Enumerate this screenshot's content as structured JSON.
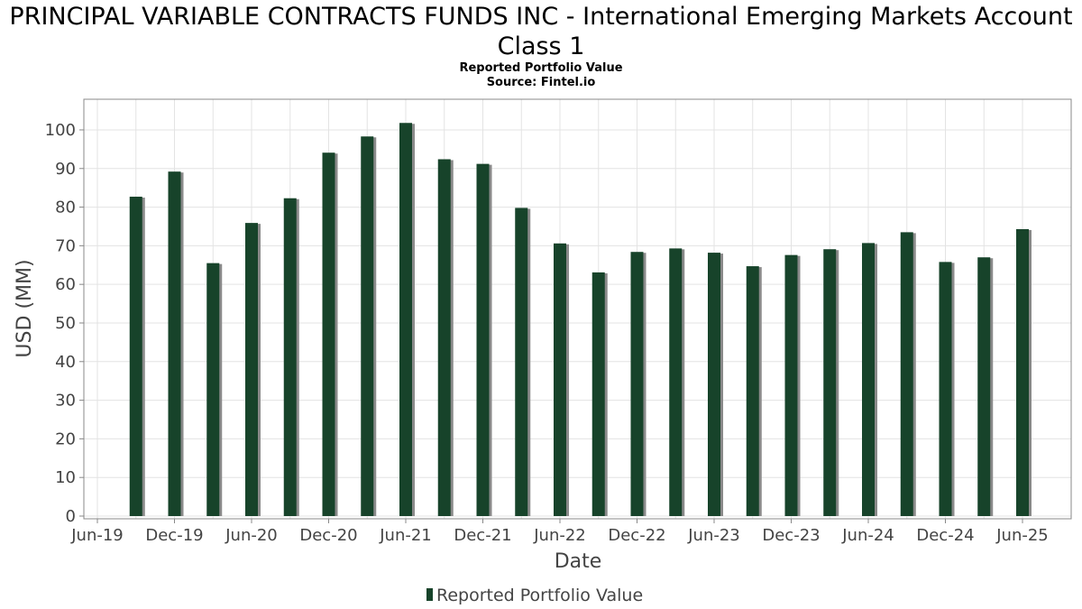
{
  "chart_data": {
    "type": "bar",
    "title": "PRINCIPAL VARIABLE CONTRACTS FUNDS INC - International Emerging Markets Account Class 1",
    "subtitle_lines": [
      "Reported Portfolio Value",
      "Source: Fintel.io"
    ],
    "xlabel": "Date",
    "ylabel": "USD (MM)",
    "ylim": [
      0,
      107
    ],
    "yticks": [
      0,
      10,
      20,
      30,
      40,
      50,
      60,
      70,
      80,
      90,
      100
    ],
    "x_ticks": [
      "Jun-19",
      "Dec-19",
      "Jun-20",
      "Dec-20",
      "Jun-21",
      "Dec-21",
      "Jun-22",
      "Dec-22",
      "Jun-23",
      "Dec-23",
      "Jun-24",
      "Dec-24",
      "Jun-25"
    ],
    "categories": [
      "Sep-19",
      "Dec-19",
      "Mar-20",
      "Jun-20",
      "Sep-20",
      "Dec-20",
      "Mar-21",
      "Jun-21",
      "Sep-21",
      "Dec-21",
      "Mar-22",
      "Jun-22",
      "Sep-22",
      "Dec-22",
      "Mar-23",
      "Jun-23",
      "Sep-23",
      "Dec-23",
      "Mar-24",
      "Jun-24",
      "Sep-24",
      "Dec-24",
      "Mar-25",
      "Jun-25"
    ],
    "series": [
      {
        "name": "Reported Portfolio Value",
        "color": "#17432a",
        "values": [
          82.7,
          89.2,
          65.5,
          75.9,
          82.3,
          94.1,
          98.3,
          101.8,
          92.4,
          91.2,
          79.8,
          70.6,
          63.1,
          68.4,
          69.3,
          68.2,
          64.7,
          67.6,
          69.1,
          70.7,
          73.5,
          65.8,
          67.0,
          74.3
        ]
      }
    ],
    "grid": true,
    "legend_position": "bottom-center"
  },
  "colors": {
    "bar": "#17432a",
    "bar_shadow": "#8a8a8a",
    "grid": "#e3e3e3",
    "axis": "#888888"
  }
}
